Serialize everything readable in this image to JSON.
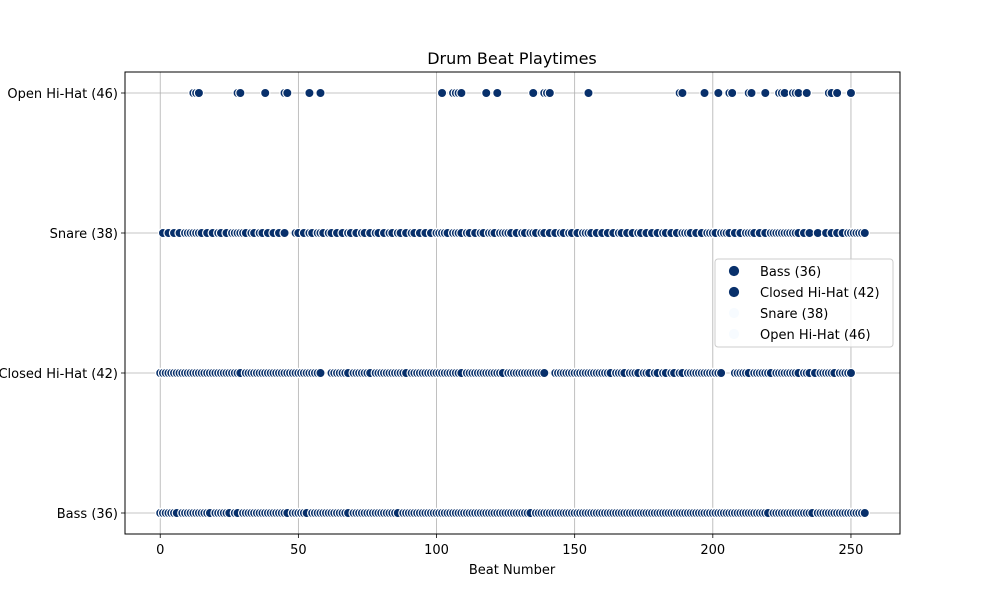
{
  "chart_data": {
    "type": "scatter",
    "title": "Drum Beat Playtimes",
    "xlabel": "Beat Number",
    "ylabel": "",
    "xlim": [
      -12.75,
      267.75
    ],
    "x_ticks": [
      0,
      50,
      100,
      150,
      200,
      250
    ],
    "categories": [
      "Bass (36)",
      "Closed Hi-Hat (42)",
      "Snare (38)",
      "Open Hi-Hat (46)"
    ],
    "grid": true,
    "legend_position": "center-right",
    "marker_color": "#08306b",
    "marker_edge_color": "#ffffff",
    "legend_marker_colors": [
      "#08306b",
      "#08306b",
      "#f7fbff",
      "#f7fbff"
    ],
    "series": [
      {
        "name": "Bass (36)",
        "category": "Bass (36)",
        "x": [
          0,
          1,
          2,
          3,
          4,
          5,
          6,
          8,
          9,
          10,
          11,
          12,
          13,
          14,
          15,
          16,
          17,
          18,
          20,
          21,
          22,
          23,
          24,
          25,
          27,
          28,
          30,
          31,
          32,
          33,
          34,
          35,
          36,
          37,
          38,
          39,
          40,
          41,
          42,
          43,
          44,
          45,
          46,
          48,
          49,
          50,
          51,
          52,
          53,
          55,
          56,
          57,
          58,
          59,
          60,
          61,
          62,
          63,
          64,
          65,
          66,
          67,
          68,
          70,
          71,
          72,
          73,
          74,
          75,
          76,
          77,
          78,
          79,
          80,
          81,
          82,
          83,
          84,
          85,
          86,
          88,
          89,
          90,
          91,
          92,
          93,
          94,
          95,
          96,
          97,
          98,
          99,
          100,
          101,
          102,
          103,
          104,
          105,
          106,
          107,
          108,
          109,
          110,
          111,
          112,
          113,
          114,
          115,
          116,
          117,
          118,
          119,
          120,
          121,
          122,
          123,
          124,
          125,
          126,
          127,
          128,
          129,
          130,
          131,
          132,
          133,
          134,
          136,
          137,
          138,
          139,
          140,
          141,
          142,
          143,
          144,
          145,
          146,
          147,
          148,
          149,
          150,
          151,
          152,
          153,
          154,
          155,
          156,
          157,
          158,
          159,
          160,
          161,
          162,
          163,
          164,
          165,
          166,
          167,
          168,
          169,
          170,
          171,
          172,
          173,
          174,
          175,
          176,
          177,
          178,
          179,
          180,
          181,
          182,
          183,
          184,
          185,
          186,
          187,
          188,
          189,
          190,
          191,
          192,
          193,
          194,
          195,
          196,
          197,
          198,
          199,
          200,
          201,
          202,
          203,
          204,
          205,
          206,
          207,
          208,
          209,
          210,
          211,
          212,
          213,
          214,
          215,
          216,
          217,
          218,
          219,
          220,
          222,
          223,
          224,
          225,
          226,
          227,
          228,
          229,
          230,
          231,
          232,
          233,
          234,
          235,
          236,
          238,
          239,
          240,
          241,
          242,
          243,
          244,
          245,
          246,
          247,
          248,
          249,
          250,
          251,
          252,
          253,
          254,
          255
        ]
      },
      {
        "name": "Closed Hi-Hat (42)",
        "category": "Closed Hi-Hat (42)",
        "x": [
          0,
          1,
          2,
          3,
          4,
          5,
          6,
          7,
          8,
          9,
          10,
          11,
          12,
          13,
          14,
          15,
          16,
          17,
          18,
          19,
          20,
          21,
          22,
          23,
          24,
          25,
          26,
          27,
          28,
          29,
          31,
          32,
          33,
          34,
          35,
          36,
          37,
          38,
          39,
          40,
          41,
          42,
          43,
          44,
          45,
          46,
          47,
          48,
          49,
          50,
          51,
          52,
          53,
          54,
          55,
          56,
          57,
          58,
          62,
          63,
          64,
          65,
          66,
          67,
          68,
          70,
          71,
          72,
          73,
          74,
          75,
          76,
          78,
          79,
          80,
          81,
          82,
          83,
          84,
          85,
          86,
          87,
          88,
          89,
          91,
          92,
          93,
          94,
          95,
          96,
          97,
          98,
          99,
          100,
          101,
          102,
          103,
          104,
          105,
          106,
          107,
          108,
          109,
          111,
          112,
          113,
          114,
          115,
          116,
          117,
          118,
          119,
          120,
          121,
          122,
          123,
          124,
          126,
          127,
          128,
          129,
          130,
          131,
          132,
          133,
          134,
          135,
          136,
          137,
          138,
          139,
          143,
          144,
          145,
          146,
          147,
          148,
          149,
          150,
          151,
          152,
          153,
          154,
          155,
          156,
          157,
          158,
          159,
          160,
          161,
          162,
          163,
          165,
          166,
          167,
          168,
          170,
          171,
          172,
          173,
          175,
          176,
          177,
          179,
          180,
          182,
          183,
          185,
          186,
          188,
          189,
          191,
          192,
          193,
          194,
          195,
          196,
          197,
          198,
          199,
          200,
          201,
          202,
          203,
          208,
          209,
          210,
          211,
          212,
          213,
          215,
          216,
          217,
          218,
          219,
          220,
          221,
          223,
          224,
          225,
          226,
          227,
          228,
          229,
          230,
          231,
          233,
          234,
          235,
          237,
          239,
          240,
          241,
          242,
          243,
          244,
          246,
          247,
          248,
          249,
          250
        ]
      },
      {
        "name": "Snare (38)",
        "category": "Snare (38)",
        "x": [
          1,
          3,
          5,
          7,
          9,
          10,
          11,
          12,
          13,
          14,
          15,
          17,
          19,
          21,
          22,
          24,
          26,
          27,
          28,
          29,
          30,
          31,
          33,
          34,
          36,
          37,
          39,
          41,
          43,
          45,
          49,
          50,
          52,
          54,
          55,
          57,
          58,
          59,
          61,
          62,
          64,
          66,
          68,
          69,
          71,
          73,
          74,
          76,
          78,
          79,
          81,
          83,
          84,
          86,
          87,
          89,
          91,
          92,
          94,
          96,
          98,
          100,
          101,
          102,
          103,
          104,
          106,
          107,
          108,
          109,
          111,
          112,
          114,
          116,
          117,
          119,
          120,
          121,
          123,
          124,
          125,
          126,
          127,
          129,
          131,
          132,
          134,
          135,
          136,
          138,
          139,
          141,
          143,
          145,
          146,
          148,
          149,
          151,
          153,
          154,
          155,
          156,
          158,
          160,
          162,
          164,
          166,
          167,
          169,
          171,
          173,
          174,
          176,
          178,
          180,
          182,
          183,
          185,
          187,
          189,
          190,
          191,
          192,
          194,
          196,
          198,
          199,
          200,
          201,
          203,
          204,
          205,
          206,
          208,
          210,
          212,
          213,
          214,
          215,
          217,
          219,
          221,
          222,
          223,
          224,
          225,
          226,
          227,
          228,
          229,
          230,
          231,
          233,
          235,
          238,
          241,
          243,
          245,
          247,
          249,
          250,
          251,
          252,
          253,
          254,
          255
        ]
      },
      {
        "name": "Open Hi-Hat (46)",
        "category": "Open Hi-Hat (46)",
        "x": [
          12,
          13,
          14,
          28,
          29,
          38,
          45,
          46,
          54,
          58,
          102,
          106,
          107,
          108,
          109,
          118,
          122,
          135,
          139,
          140,
          141,
          155,
          188,
          189,
          197,
          202,
          206,
          207,
          213,
          214,
          219,
          224,
          225,
          226,
          229,
          230,
          231,
          234,
          242,
          243,
          245,
          250
        ]
      }
    ]
  }
}
